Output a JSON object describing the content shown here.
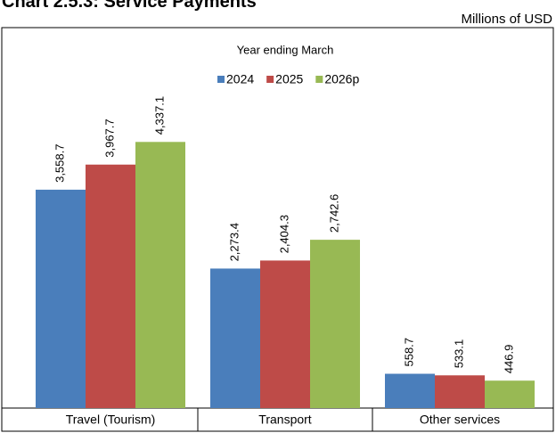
{
  "chart_data": {
    "type": "bar",
    "title": "Chart 2.5.3: Service Payments",
    "subtitle": "Millions of USD",
    "legend_title": "Year ending March",
    "categories": [
      "Travel (Tourism)",
      "Transport",
      "Other services"
    ],
    "series": [
      {
        "name": "2024",
        "color": "#4a7ebb",
        "values": [
          3558.7,
          2273.4,
          558.7
        ],
        "value_labels": [
          "3,558.7",
          "2,273.4",
          "558.7"
        ]
      },
      {
        "name": "2025",
        "color": "#be4b48",
        "values": [
          3967.7,
          2404.3,
          533.1
        ],
        "value_labels": [
          "3,967.7",
          "2,404.3",
          "533.1"
        ]
      },
      {
        "name": "2026p",
        "color": "#98b954",
        "values": [
          4337.1,
          2742.6,
          446.9
        ],
        "value_labels": [
          "4,337.1",
          "2,742.6",
          "446.9"
        ]
      }
    ],
    "ylim": [
      0,
      6200
    ],
    "legend": "top"
  }
}
